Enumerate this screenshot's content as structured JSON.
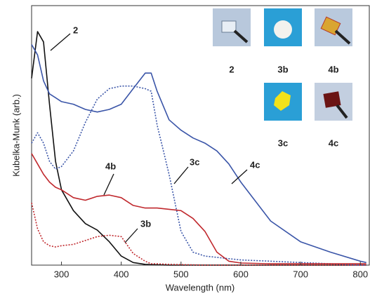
{
  "chart_data": {
    "type": "line",
    "x_label": "Wavelength (nm)",
    "y_label": "Kubelka-Munk (arb.)",
    "x": [
      250,
      260,
      270,
      280,
      290,
      300,
      320,
      340,
      360,
      380,
      400,
      420,
      440,
      450,
      460,
      480,
      500,
      520,
      540,
      560,
      580,
      600,
      650,
      700,
      750,
      800,
      810
    ],
    "series": [
      {
        "name": "2",
        "color": "#111111",
        "dash": false,
        "values": [
          0.72,
          0.9,
          0.86,
          0.62,
          0.4,
          0.29,
          0.21,
          0.16,
          0.135,
          0.09,
          0.035,
          0.01,
          0.003,
          0.002,
          0.001,
          0,
          0,
          0,
          0,
          0,
          0,
          0,
          0,
          0,
          0,
          0,
          0
        ]
      },
      {
        "name": "4c",
        "color": "#3a55a8",
        "dash": false,
        "values": [
          0.85,
          0.81,
          0.71,
          0.66,
          0.645,
          0.63,
          0.62,
          0.6,
          0.59,
          0.6,
          0.62,
          0.68,
          0.74,
          0.74,
          0.67,
          0.56,
          0.52,
          0.49,
          0.47,
          0.44,
          0.39,
          0.32,
          0.17,
          0.09,
          0.05,
          0.015,
          0.01
        ]
      },
      {
        "name": "3c",
        "color": "#3a55a8",
        "dash": true,
        "values": [
          0.47,
          0.51,
          0.47,
          0.4,
          0.37,
          0.38,
          0.44,
          0.55,
          0.64,
          0.68,
          0.69,
          0.69,
          0.68,
          0.67,
          0.54,
          0.35,
          0.13,
          0.05,
          0.035,
          0.03,
          0.025,
          0.02,
          0.015,
          0.01,
          0.005,
          0,
          0
        ]
      },
      {
        "name": "4b",
        "color": "#c0282d",
        "dash": false,
        "values": [
          0.43,
          0.39,
          0.35,
          0.32,
          0.3,
          0.29,
          0.26,
          0.25,
          0.265,
          0.27,
          0.26,
          0.23,
          0.22,
          0.22,
          0.22,
          0.215,
          0.21,
          0.18,
          0.13,
          0.05,
          0.015,
          0.008,
          0.005,
          0.005,
          0.005,
          0.005,
          0.005
        ]
      },
      {
        "name": "3b",
        "color": "#c0282d",
        "dash": true,
        "values": [
          0.24,
          0.14,
          0.09,
          0.075,
          0.07,
          0.075,
          0.08,
          0.095,
          0.11,
          0.115,
          0.11,
          0.045,
          0.015,
          0.005,
          0.005,
          0.003,
          0.002,
          0.001,
          0,
          0,
          0,
          0,
          0,
          0,
          0,
          0,
          0
        ]
      }
    ],
    "xlim": [
      250,
      815
    ],
    "xticks": [
      300,
      400,
      500,
      600,
      700,
      800
    ],
    "ylim": [
      0,
      1
    ],
    "insets": [
      "2",
      "3b",
      "4b",
      "3c",
      "4c"
    ]
  }
}
